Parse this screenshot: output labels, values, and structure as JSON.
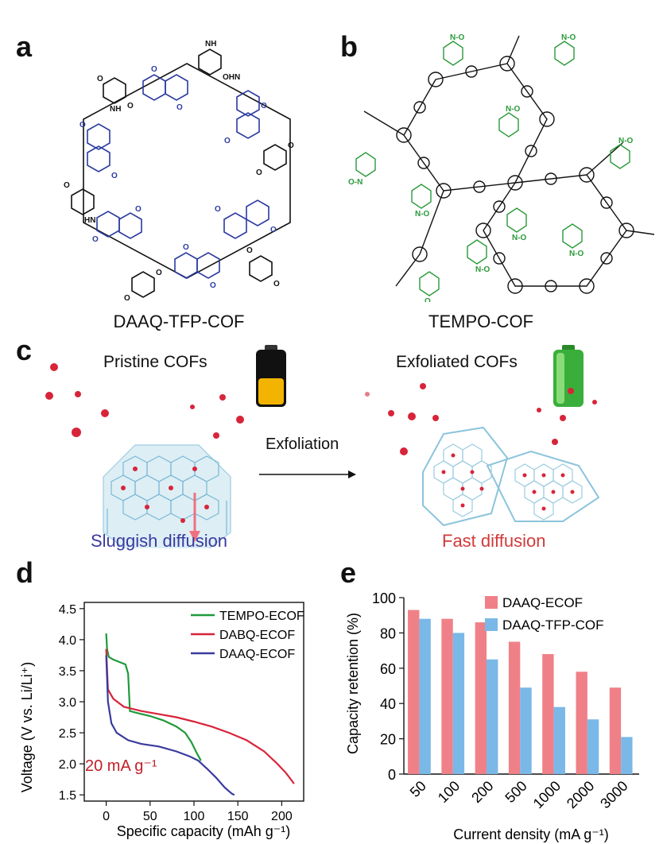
{
  "panels": {
    "a": {
      "letter": "a",
      "caption": "DAAQ-TFP-COF"
    },
    "b": {
      "letter": "b",
      "caption": "TEMPO-COF"
    },
    "c": {
      "letter": "c",
      "left_label": "Pristine COFs",
      "right_label": "Exfoliated COFs",
      "arrow_label": "Exfoliation",
      "left_caption": "Sluggish diffusion",
      "right_caption": "Fast diffusion",
      "colors": {
        "sluggish": "#3a3aa0",
        "fast": "#d23a3a",
        "lattice": "#a8d4e8",
        "dot": "#d8243a"
      }
    },
    "d": {
      "letter": "d"
    },
    "e": {
      "letter": "e"
    }
  },
  "chart_data": [
    {
      "type": "line",
      "panel": "d",
      "xlabel": "Specific capacity (mAh g⁻¹)",
      "ylabel": "Voltage (V vs. Li/Li⁺)",
      "xlim": [
        -25,
        225
      ],
      "ylim": [
        1.4,
        4.6
      ],
      "xticks": [
        0,
        50,
        100,
        150,
        200
      ],
      "yticks": [
        1.5,
        2.0,
        2.5,
        3.0,
        3.5,
        4.0,
        4.5
      ],
      "ytick_labels": [
        "1.5",
        "2.0",
        "2.5",
        "3.0",
        "3.5",
        "4.0",
        "4.5"
      ],
      "annotation": "20 mA g⁻¹",
      "legend": "top-right",
      "grid": false,
      "series": [
        {
          "name": "TEMPO-ECOF",
          "color": "#1e9a3a",
          "points": [
            [
              0,
              4.1
            ],
            [
              1,
              3.85
            ],
            [
              3,
              3.72
            ],
            [
              8,
              3.68
            ],
            [
              15,
              3.64
            ],
            [
              22,
              3.6
            ],
            [
              25,
              3.45
            ],
            [
              27,
              2.85
            ],
            [
              35,
              2.82
            ],
            [
              50,
              2.77
            ],
            [
              65,
              2.7
            ],
            [
              80,
              2.6
            ],
            [
              90,
              2.5
            ],
            [
              97,
              2.35
            ],
            [
              103,
              2.18
            ],
            [
              108,
              2.05
            ]
          ]
        },
        {
          "name": "DABQ-ECOF",
          "color": "#d8243a",
          "points": [
            [
              0,
              3.85
            ],
            [
              2,
              3.2
            ],
            [
              8,
              3.05
            ],
            [
              20,
              2.92
            ],
            [
              40,
              2.85
            ],
            [
              60,
              2.8
            ],
            [
              80,
              2.75
            ],
            [
              100,
              2.68
            ],
            [
              120,
              2.6
            ],
            [
              140,
              2.5
            ],
            [
              160,
              2.38
            ],
            [
              180,
              2.2
            ],
            [
              195,
              2.0
            ],
            [
              205,
              1.85
            ],
            [
              212,
              1.72
            ],
            [
              214,
              1.68
            ]
          ]
        },
        {
          "name": "DAAQ-ECOF",
          "color": "#3a3aa0",
          "points": [
            [
              0,
              3.75
            ],
            [
              2,
              3.0
            ],
            [
              6,
              2.65
            ],
            [
              12,
              2.5
            ],
            [
              25,
              2.38
            ],
            [
              40,
              2.32
            ],
            [
              60,
              2.28
            ],
            [
              80,
              2.2
            ],
            [
              95,
              2.12
            ],
            [
              105,
              2.05
            ],
            [
              115,
              1.92
            ],
            [
              125,
              1.78
            ],
            [
              135,
              1.62
            ],
            [
              143,
              1.52
            ],
            [
              146,
              1.5
            ]
          ]
        }
      ]
    },
    {
      "type": "bar",
      "panel": "e",
      "xlabel": "Current density (mA g⁻¹)",
      "ylabel": "Capacity retention (%)",
      "ylim": [
        0,
        100
      ],
      "yticks": [
        0,
        20,
        40,
        60,
        80,
        100
      ],
      "categories": [
        "50",
        "100",
        "200",
        "500",
        "1000",
        "2000",
        "3000"
      ],
      "legend": "top-right",
      "grid": false,
      "series": [
        {
          "name": "DAAQ-ECOF",
          "color": "#f08088",
          "values": [
            93,
            88,
            86,
            75,
            68,
            58,
            49
          ]
        },
        {
          "name": "DAAQ-TFP-COF",
          "color": "#7ab8e8",
          "values": [
            88,
            80,
            65,
            49,
            38,
            31,
            21
          ]
        }
      ]
    }
  ]
}
